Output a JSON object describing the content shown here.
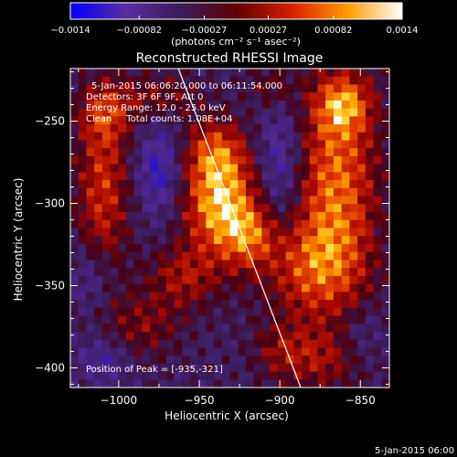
{
  "chart_data": {
    "type": "heatmap",
    "title": "Reconstructed RHESSI Image",
    "xlabel": "Heliocentric X (arcsec)",
    "ylabel": "Heliocentric Y (arcsec)",
    "xlim": [
      -1030,
      -832
    ],
    "ylim": [
      -412,
      -218
    ],
    "xticks": [
      -1000,
      -950,
      -900,
      -850
    ],
    "xtick_labels": [
      "−1000",
      "−950",
      "−900",
      "−850"
    ],
    "yticks": [
      -250,
      -300,
      -350,
      -400
    ],
    "ytick_labels": [
      "−250",
      "−300",
      "−350",
      "−400"
    ],
    "colorbar": {
      "min": -0.0014,
      "max": 0.0014,
      "ticks": [
        -0.0014,
        -0.00082,
        -0.00027,
        0.00027,
        0.00082,
        0.0014
      ],
      "tick_labels": [
        "−0.0014",
        "−0.00082",
        "−0.00027",
        "0.00027",
        "0.00082",
        "0.0014"
      ],
      "unit_label": "(photons cm⁻² s⁻¹ asec⁻²)",
      "colors": [
        "#0000ff",
        "#5a2ca0",
        "#3a1c5a",
        "#600000",
        "#d62000",
        "#ff9a00",
        "#ffffff"
      ]
    },
    "annotations": [
      "5-Jan-2015 06:06:20.000 to 06:11:54.000",
      "Detectors: 3F 6F 9F, Att 0",
      "Energy Range: 12.0 - 25.0 keV",
      "Clean     Total counts: 1.08E+04"
    ],
    "peak_label": "Position of Peak = [-935,-321]",
    "peak": [
      -935,
      -321
    ],
    "limb_line": [
      [
        -963,
        -218
      ],
      [
        -887,
        -412
      ]
    ],
    "bright_regions": [
      {
        "x": -937,
        "y": -300,
        "amp": 1.0,
        "sx": 16,
        "sy": 22
      },
      {
        "x": -940,
        "y": -268,
        "amp": 0.55,
        "sx": 14,
        "sy": 14
      },
      {
        "x": -918,
        "y": -320,
        "amp": 0.55,
        "sx": 12,
        "sy": 14
      },
      {
        "x": -865,
        "y": -285,
        "amp": 0.8,
        "sx": 18,
        "sy": 45
      },
      {
        "x": -860,
        "y": -240,
        "amp": 0.6,
        "sx": 12,
        "sy": 12
      },
      {
        "x": -880,
        "y": -340,
        "amp": 0.6,
        "sx": 22,
        "sy": 22
      },
      {
        "x": -875,
        "y": -395,
        "amp": 0.4,
        "sx": 18,
        "sy": 14
      },
      {
        "x": -1010,
        "y": -290,
        "amp": 0.6,
        "sx": 12,
        "sy": 40
      },
      {
        "x": -1008,
        "y": -245,
        "amp": 0.4,
        "sx": 12,
        "sy": 12
      },
      {
        "x": -975,
        "y": -235,
        "amp": 0.35,
        "sx": 18,
        "sy": 10
      },
      {
        "x": -960,
        "y": -345,
        "amp": 0.45,
        "sx": 16,
        "sy": 14
      },
      {
        "x": -985,
        "y": -375,
        "amp": 0.35,
        "sx": 16,
        "sy": 14
      },
      {
        "x": -905,
        "y": -230,
        "amp": 0.35,
        "sx": 10,
        "sy": 10
      },
      {
        "x": -900,
        "y": -390,
        "amp": 0.3,
        "sx": 12,
        "sy": 12
      }
    ],
    "dark_regions": [
      {
        "x": -975,
        "y": -280,
        "amp": 0.9,
        "sx": 10,
        "sy": 20
      },
      {
        "x": -900,
        "y": -275,
        "amp": 0.8,
        "sx": 10,
        "sy": 30
      },
      {
        "x": -1018,
        "y": -345,
        "amp": 0.6,
        "sx": 10,
        "sy": 14
      },
      {
        "x": -1010,
        "y": -395,
        "amp": 0.6,
        "sx": 12,
        "sy": 10
      },
      {
        "x": -850,
        "y": -380,
        "amp": 0.4,
        "sx": 10,
        "sy": 12
      }
    ]
  },
  "footer": {
    "date_stamp": "5-Jan-2015 06:00"
  }
}
